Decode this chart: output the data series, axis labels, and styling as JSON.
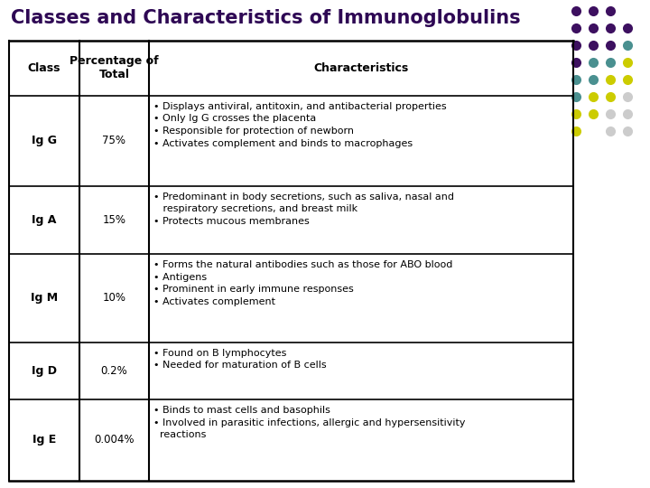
{
  "title": "Classes and Characteristics of Immunoglobulins",
  "title_color": "#2E0854",
  "title_fontsize": 15,
  "col_headers": [
    "Class",
    "Percentage of\nTotal",
    "Characteristics"
  ],
  "rows": [
    {
      "class": "Ig G",
      "percentage": "75%",
      "characteristics": [
        "• Displays antiviral, antitoxin, and antibacterial properties",
        "• Only Ig G crosses the placenta",
        "• Responsible for protection of newborn",
        "• Activates complement and binds to macrophages"
      ]
    },
    {
      "class": "Ig A",
      "percentage": "15%",
      "characteristics": [
        "• Predominant in body secretions, such as saliva, nasal and\n   respiratory secretions, and breast milk",
        "• Protects mucous membranes"
      ]
    },
    {
      "class": "Ig M",
      "percentage": "10%",
      "characteristics": [
        "• Forms the natural antibodies such as those for ABO blood",
        "• Antigens",
        "• Prominent in early immune responses",
        "• Activates complement"
      ]
    },
    {
      "class": "Ig D",
      "percentage": "0.2%",
      "characteristics": [
        "• Found on B lymphocytes",
        "• Needed for maturation of B cells"
      ]
    },
    {
      "class": "Ig E",
      "percentage": "0.004%",
      "characteristics": [
        "• Binds to mast cells and basophils",
        "• Involved in parasitic infections, allergic and hypersensitivity\n  reactions"
      ]
    }
  ],
  "bg_color": "#FFFFFF",
  "border_color": "#000000",
  "text_color": "#000000",
  "dot_grid": [
    [
      "#3D1060",
      "#3D1060",
      "#3D1060",
      null
    ],
    [
      "#3D1060",
      "#3D1060",
      "#3D1060",
      "#3D1060"
    ],
    [
      "#3D1060",
      "#3D1060",
      "#3D1060",
      "#4A9090"
    ],
    [
      "#3D1060",
      "#4A9090",
      "#4A9090",
      "#CCCC00"
    ],
    [
      "#4A9090",
      "#4A9090",
      "#CCCC00",
      "#CCCC00"
    ],
    [
      "#4A9090",
      "#CCCC00",
      "#CCCC00",
      "#CCCCCC"
    ],
    [
      "#CCCC00",
      "#CCCC00",
      "#CCCCCC",
      "#CCCCCC"
    ],
    [
      "#CCCC00",
      null,
      "#CCCCCC",
      "#CCCCCC"
    ]
  ]
}
